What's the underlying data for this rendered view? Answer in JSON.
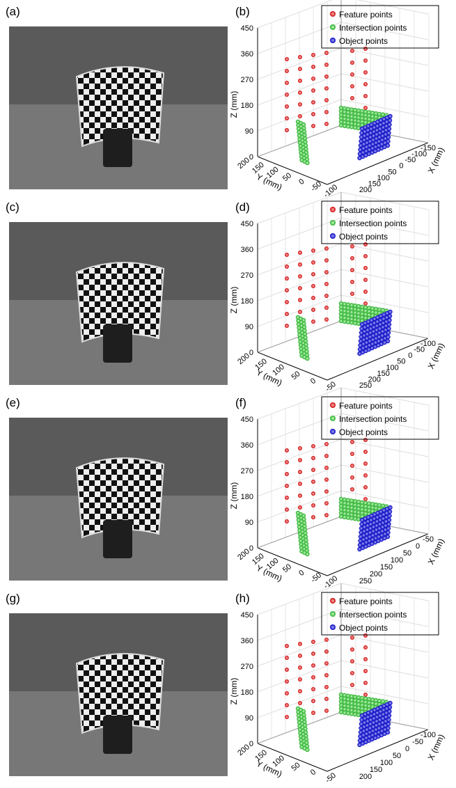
{
  "panels": [
    {
      "photo_label": "(a)",
      "plot_label": "(b)",
      "legend": [
        "Feature points",
        "Intersection points",
        "Object points"
      ],
      "z_label": "Z (mm)",
      "y_label": "Y (mm)",
      "x_label": "X (mm)",
      "z_ticks": [
        "0",
        "90",
        "180",
        "270",
        "360",
        "450"
      ],
      "y_ticks": [
        "200",
        "150",
        "100",
        "50",
        "0",
        "-50",
        "-100"
      ],
      "x_ticks": [
        "-150",
        "-100",
        "-50",
        "0",
        "50",
        "100",
        "150",
        "200"
      ]
    },
    {
      "photo_label": "(c)",
      "plot_label": "(d)",
      "legend": [
        "Feature points",
        "Intersection points",
        "Object points"
      ],
      "z_label": "Z (mm)",
      "y_label": "Y (mm)",
      "x_label": "X (mm)",
      "z_ticks": [
        "0",
        "90",
        "180",
        "270",
        "360",
        "450"
      ],
      "y_ticks": [
        "200",
        "150",
        "100",
        "50",
        "0",
        "-50"
      ],
      "x_ticks": [
        "-100",
        "-50",
        "0",
        "50",
        "100",
        "150",
        "200",
        "250"
      ]
    },
    {
      "photo_label": "(e)",
      "plot_label": "(f)",
      "legend": [
        "Feature points",
        "Intersection points",
        "Object points"
      ],
      "z_label": "Z (mm)",
      "y_label": "Y (mm)",
      "x_label": "X (mm)",
      "z_ticks": [
        "0",
        "90",
        "180",
        "270",
        "360",
        "450"
      ],
      "y_ticks": [
        "200",
        "150",
        "100",
        "50",
        "0",
        "-50",
        "-100"
      ],
      "x_ticks": [
        "-50",
        "0",
        "50",
        "100",
        "150",
        "200",
        "250"
      ]
    },
    {
      "photo_label": "(g)",
      "plot_label": "(h)",
      "legend": [
        "Feature points",
        "Intersection points",
        "Object points"
      ],
      "z_label": "Z (mm)",
      "y_label": "Y (mm)",
      "x_label": "X (mm)",
      "z_ticks": [
        "0",
        "90",
        "180",
        "270",
        "360",
        "450"
      ],
      "y_ticks": [
        "200",
        "150",
        "100",
        "50",
        "0",
        "-50"
      ],
      "x_ticks": [
        "-100",
        "-50",
        "0",
        "50",
        "100",
        "150",
        "200"
      ]
    }
  ]
}
